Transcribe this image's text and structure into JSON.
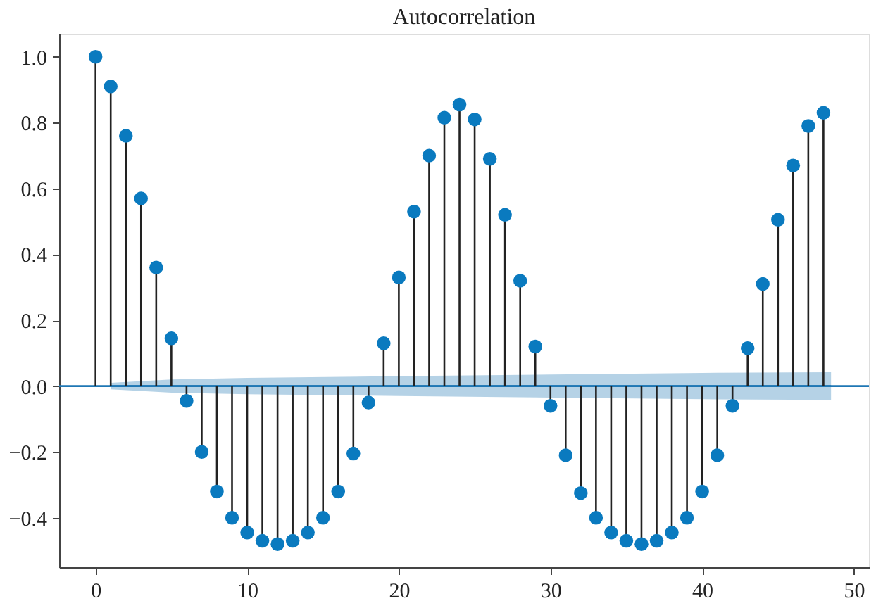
{
  "chart_data": {
    "type": "lollipop",
    "title": "Autocorrelation",
    "x": [
      0,
      1,
      2,
      3,
      4,
      5,
      6,
      7,
      8,
      9,
      10,
      11,
      12,
      13,
      14,
      15,
      16,
      17,
      18,
      19,
      20,
      21,
      22,
      23,
      24,
      25,
      26,
      27,
      28,
      29,
      30,
      31,
      32,
      33,
      34,
      35,
      36,
      37,
      38,
      39,
      40,
      41,
      42,
      43,
      44,
      45,
      46,
      47,
      48
    ],
    "series": [
      {
        "type": "line",
        "marker": "none",
        "color": "#1f77b4",
        "x": [
          1,
          5,
          10,
          20,
          30,
          40,
          48.5
        ],
        "values": [
          0,
          0,
          0,
          0,
          0,
          0,
          0
        ],
        "lower": [
          -0.01,
          -0.02,
          -0.025,
          -0.03,
          -0.035,
          -0.04,
          -0.042
        ],
        "upper": [
          0.01,
          0.02,
          0.025,
          0.03,
          0.035,
          0.04,
          0.042
        ]
      },
      {
        "color": "#0a7abf",
        "values": [
          1.0,
          0.91,
          0.76,
          0.57,
          0.36,
          0.145,
          -0.045,
          -0.2,
          -0.32,
          -0.4,
          -0.445,
          -0.47,
          -0.48,
          -0.47,
          -0.445,
          -0.4,
          -0.32,
          -0.205,
          -0.05,
          0.13,
          0.33,
          0.53,
          0.7,
          0.815,
          0.855,
          0.81,
          0.69,
          0.52,
          0.32,
          0.12,
          -0.06,
          -0.21,
          -0.325,
          -0.4,
          -0.445,
          -0.47,
          -0.48,
          -0.47,
          -0.445,
          -0.4,
          -0.32,
          -0.21,
          -0.06,
          0.115,
          0.31,
          0.505,
          0.67,
          0.79,
          0.83
        ]
      }
    ],
    "ref_lines": [
      {
        "axis": "y",
        "value": 0,
        "color": "#1f77b4"
      }
    ],
    "xlim": [
      -2.4,
      51
    ],
    "ylim": [
      -0.55,
      1.07
    ],
    "xticks": [
      0,
      10,
      20,
      30,
      40,
      50
    ],
    "yticks": [
      {
        "value": -0.4,
        "label": "−0.4"
      },
      {
        "value": -0.2,
        "label": "−0.2"
      },
      {
        "value": 0,
        "label": "0.0"
      },
      {
        "value": 0.2,
        "label": "0.2"
      },
      {
        "value": 0.4,
        "label": "0.4"
      },
      {
        "value": 0.6,
        "label": "0.6"
      },
      {
        "value": 0.8,
        "label": "0.8"
      },
      {
        "value": 1.0,
        "label": "1.0"
      }
    ],
    "grid": false,
    "marker": "circle"
  }
}
